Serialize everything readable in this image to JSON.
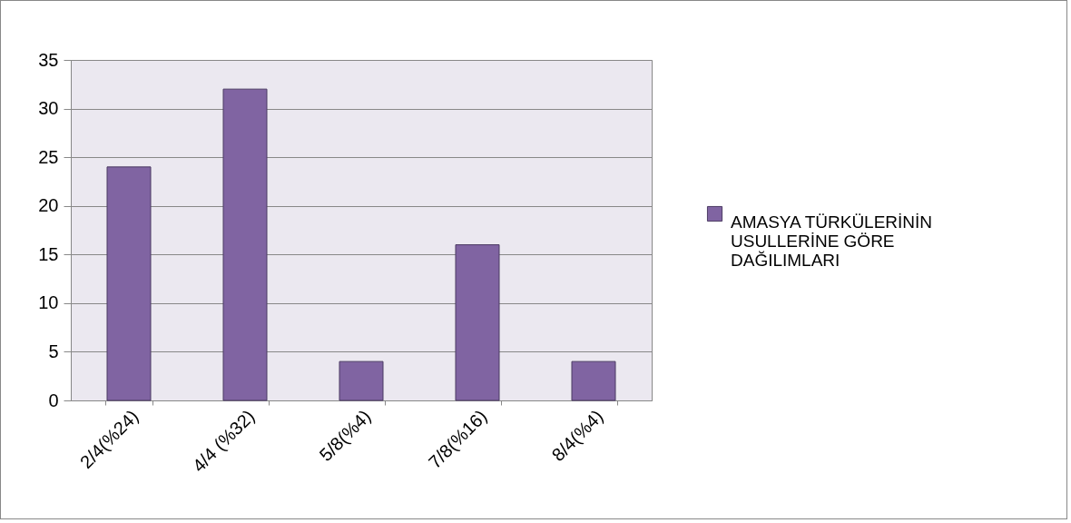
{
  "chart_data": {
    "type": "bar",
    "categories": [
      "2/4(%24)",
      "4/4 (%32)",
      "5/8(%4)",
      "7/8(%16)",
      "8/4(%4)"
    ],
    "series": [
      {
        "name": "AMASYA TÜRKÜLERİNİN USULLERİNE GÖRE DAĞILIMLARI",
        "color": "#8064a2",
        "values": [
          24,
          32,
          4,
          16,
          4
        ]
      }
    ],
    "ylim": [
      0,
      35
    ],
    "yticks": [
      0,
      5,
      10,
      15,
      20,
      25,
      30,
      35
    ],
    "grid": "y",
    "legend": "right"
  }
}
